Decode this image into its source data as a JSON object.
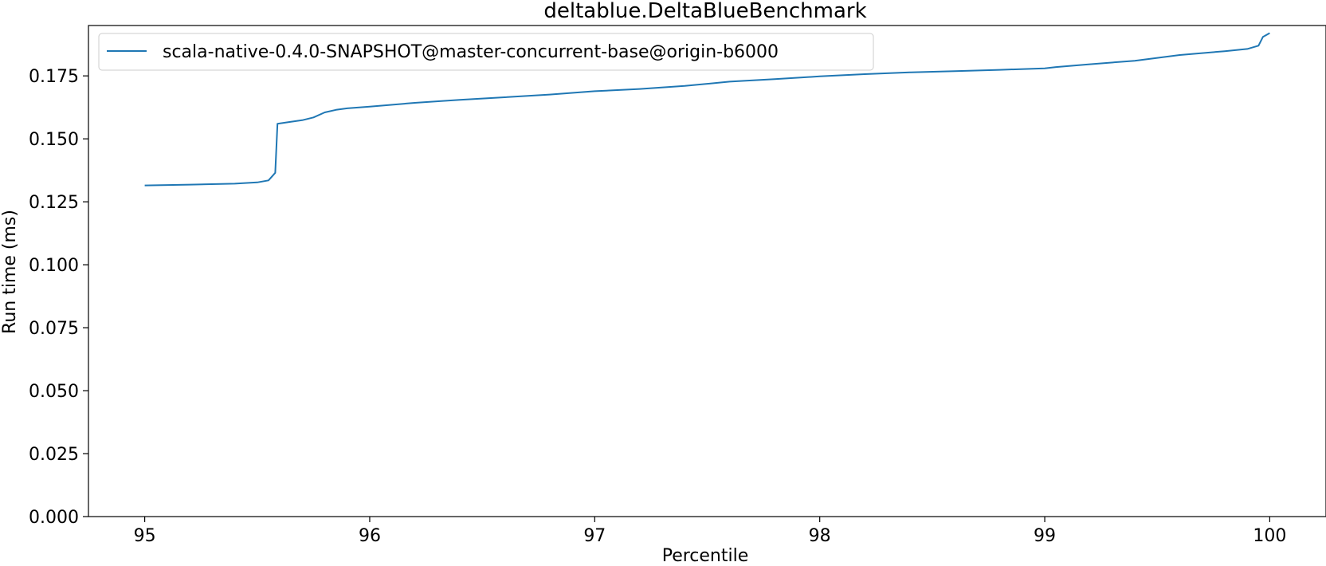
{
  "chart_data": {
    "type": "line",
    "title": "deltablue.DeltaBlueBenchmark",
    "xlabel": "Percentile",
    "ylabel": "Run time (ms)",
    "xlim": [
      94.75,
      100.25
    ],
    "ylim": [
      0.0,
      0.195
    ],
    "xticks": [
      95,
      96,
      97,
      98,
      99,
      100
    ],
    "xtick_labels": [
      "95",
      "96",
      "97",
      "98",
      "99",
      "100"
    ],
    "yticks": [
      0.0,
      0.025,
      0.05,
      0.075,
      0.1,
      0.125,
      0.15,
      0.175
    ],
    "ytick_labels": [
      "0.000",
      "0.025",
      "0.050",
      "0.075",
      "0.100",
      "0.125",
      "0.150",
      "0.175"
    ],
    "grid": false,
    "legend_position": "top-left",
    "series": [
      {
        "name": "scala-native-0.4.0-SNAPSHOT@master-concurrent-base@origin-b6000",
        "color": "#1f77b4",
        "x": [
          95.0,
          95.2,
          95.4,
          95.5,
          95.55,
          95.58,
          95.59,
          95.65,
          95.7,
          95.75,
          95.8,
          95.85,
          95.9,
          96.0,
          96.2,
          96.4,
          96.6,
          96.8,
          97.0,
          97.2,
          97.4,
          97.6,
          97.8,
          98.0,
          98.2,
          98.4,
          98.6,
          98.8,
          99.0,
          99.05,
          99.2,
          99.4,
          99.6,
          99.8,
          99.9,
          99.95,
          99.97,
          100.0
        ],
        "y": [
          0.1315,
          0.1318,
          0.1322,
          0.1327,
          0.1335,
          0.1365,
          0.156,
          0.1568,
          0.1574,
          0.1585,
          0.1605,
          0.1615,
          0.1621,
          0.1628,
          0.1643,
          0.1655,
          0.1665,
          0.1676,
          0.1689,
          0.1698,
          0.171,
          0.1727,
          0.1737,
          0.1748,
          0.1757,
          0.1764,
          0.1769,
          0.1774,
          0.178,
          0.1785,
          0.1796,
          0.181,
          0.1833,
          0.1848,
          0.1857,
          0.187,
          0.1905,
          0.192
        ]
      }
    ]
  }
}
